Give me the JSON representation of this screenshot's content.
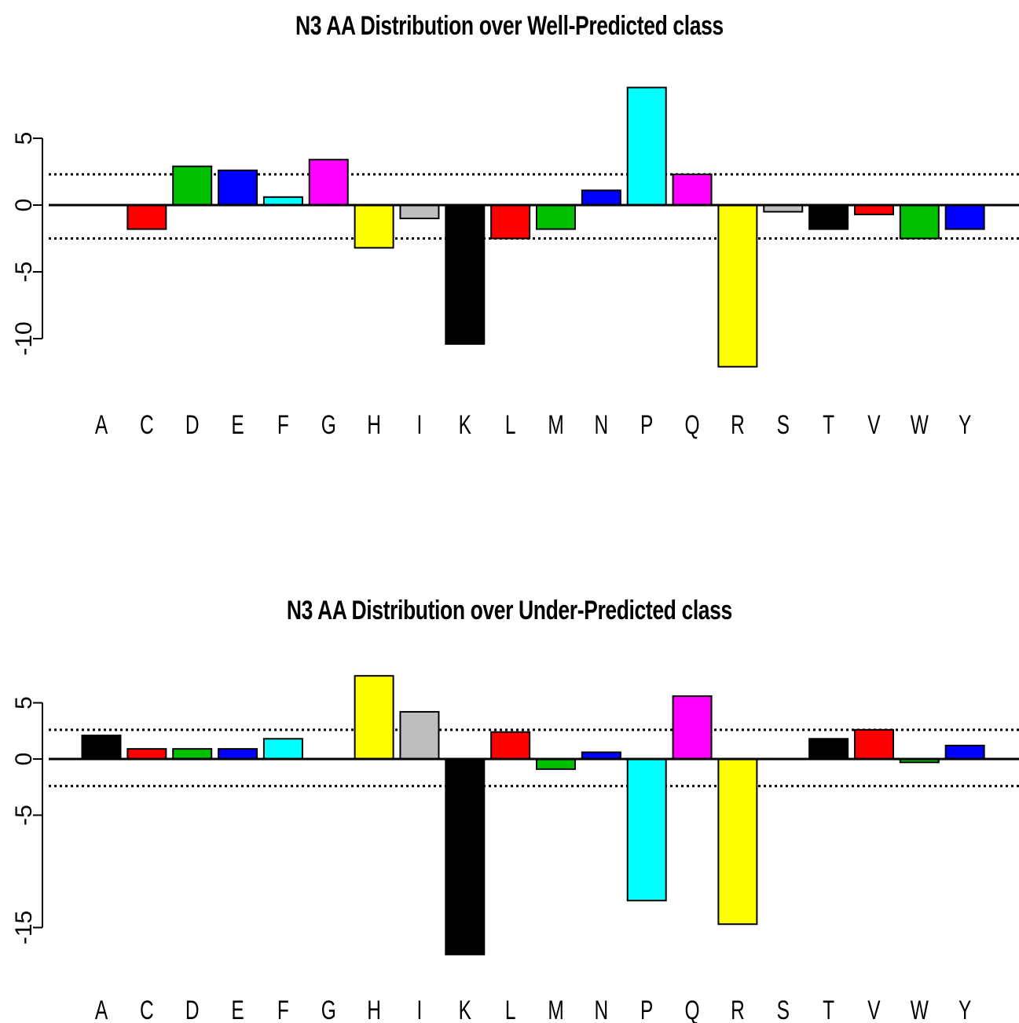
{
  "chart_data": [
    {
      "type": "bar",
      "title": "N3 AA Distribution over Well-Predicted class",
      "categories": [
        "A",
        "C",
        "D",
        "E",
        "F",
        "G",
        "H",
        "I",
        "K",
        "L",
        "M",
        "N",
        "P",
        "Q",
        "R",
        "S",
        "T",
        "V",
        "W",
        "Y"
      ],
      "values": [
        0,
        -1.8,
        2.9,
        2.6,
        0.6,
        3.4,
        -3.2,
        -1.0,
        -10.4,
        -2.5,
        -1.8,
        1.1,
        8.8,
        2.3,
        -12.1,
        -0.5,
        -1.8,
        -0.7,
        -2.5,
        -1.8
      ],
      "colors": [
        "#000000",
        "#ff0000",
        "#00c000",
        "#0000ff",
        "#00ffff",
        "#ff00ff",
        "#ffff00",
        "#bebebe",
        "#000000",
        "#ff0000",
        "#00c000",
        "#0000ff",
        "#00ffff",
        "#ff00ff",
        "#ffff00",
        "#bebebe",
        "#000000",
        "#ff0000",
        "#00c000",
        "#0000ff"
      ],
      "reference_lines": [
        2.3,
        -2.5
      ],
      "yticks": [
        5,
        0,
        -5,
        -10
      ],
      "ylim": [
        -12.8,
        9.5
      ],
      "xlabel": "",
      "ylabel": ""
    },
    {
      "type": "bar",
      "title": "N3 AA Distribution over Under-Predicted class",
      "categories": [
        "A",
        "C",
        "D",
        "E",
        "F",
        "G",
        "H",
        "I",
        "K",
        "L",
        "M",
        "N",
        "P",
        "Q",
        "R",
        "S",
        "T",
        "V",
        "W",
        "Y"
      ],
      "values": [
        2.1,
        0.9,
        0.9,
        0.9,
        1.8,
        0,
        7.4,
        4.2,
        -17.4,
        2.4,
        -0.9,
        0.6,
        -12.6,
        5.6,
        -14.7,
        0,
        1.8,
        2.6,
        -0.3,
        1.2
      ],
      "colors": [
        "#000000",
        "#ff0000",
        "#00c000",
        "#0000ff",
        "#00ffff",
        "#ff00ff",
        "#ffff00",
        "#bebebe",
        "#000000",
        "#ff0000",
        "#00c000",
        "#0000ff",
        "#00ffff",
        "#ff00ff",
        "#ffff00",
        "#bebebe",
        "#000000",
        "#ff0000",
        "#00c000",
        "#0000ff"
      ],
      "reference_lines": [
        2.6,
        -2.4
      ],
      "yticks": [
        5,
        0,
        -5,
        -15
      ],
      "ylim": [
        -18.5,
        8.4
      ],
      "xlabel": "",
      "ylabel": ""
    }
  ]
}
